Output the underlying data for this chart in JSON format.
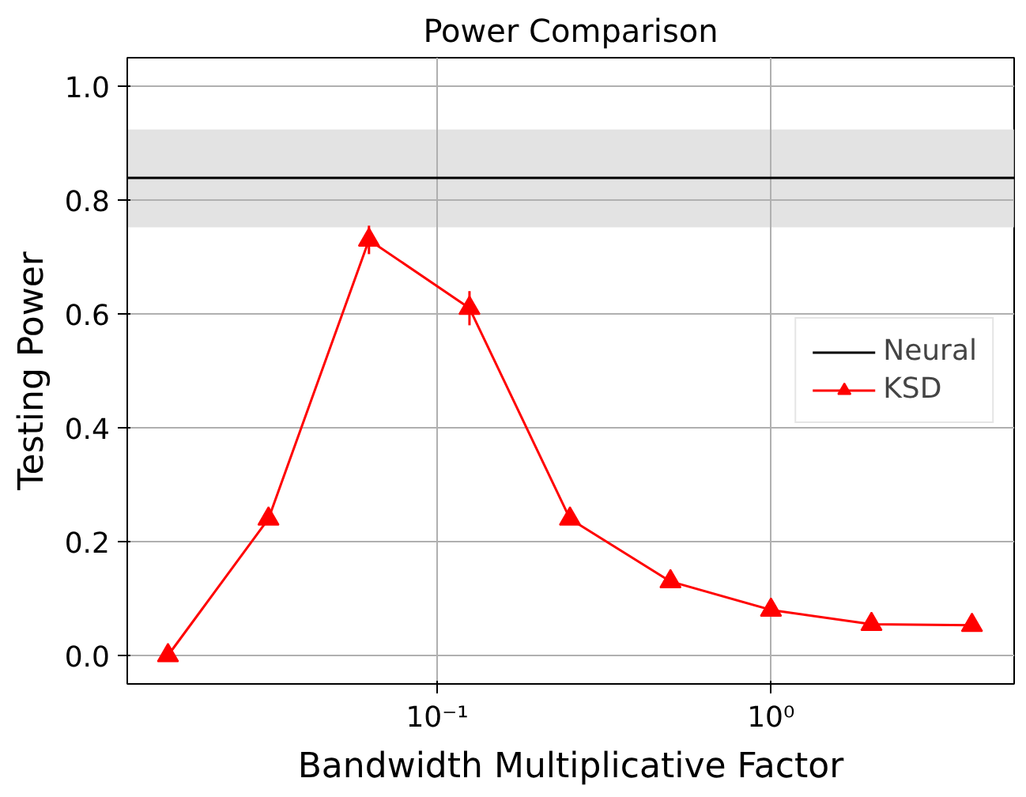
{
  "chart_data": {
    "type": "line",
    "title": "Power Comparison",
    "xlabel": "Bandwidth Multiplicative Factor",
    "ylabel": "Testing Power",
    "log": "x",
    "xlim": [
      0.0118,
      5.35
    ],
    "xticks": [
      {
        "value": 0.1,
        "label": "10⁻¹"
      },
      {
        "value": 1,
        "label": "10⁰"
      }
    ],
    "ylim": [
      -0.05,
      1.05
    ],
    "yticks": [
      {
        "value": 0,
        "label": "0.0"
      },
      {
        "value": 0.2,
        "label": "0.2"
      },
      {
        "value": 0.4,
        "label": "0.4"
      },
      {
        "value": 0.6,
        "label": "0.6"
      },
      {
        "value": 0.8,
        "label": "0.8"
      },
      {
        "value": 1,
        "label": "1.0"
      }
    ],
    "grid": true,
    "legend": "right",
    "series": [
      {
        "name": "Neural",
        "color": "#000000",
        "marker": "none",
        "x": [
          0.0118,
          5.35
        ],
        "values": [
          0.839,
          0.839
        ],
        "lower": [
          0.752,
          0.752
        ],
        "upper": [
          0.924,
          0.924
        ]
      },
      {
        "name": "KSD",
        "color": "#ff0000",
        "marker": "triangle",
        "x": [
          0.015625,
          0.03125,
          0.0625,
          0.125,
          0.25,
          0.5,
          1,
          2,
          4
        ],
        "values": [
          0.0,
          0.24,
          0.73,
          0.61,
          0.24,
          0.13,
          0.08,
          0.055,
          0.053
        ],
        "errors": [
          null,
          null,
          0.025,
          0.03,
          null,
          null,
          null,
          null,
          null
        ]
      }
    ]
  }
}
